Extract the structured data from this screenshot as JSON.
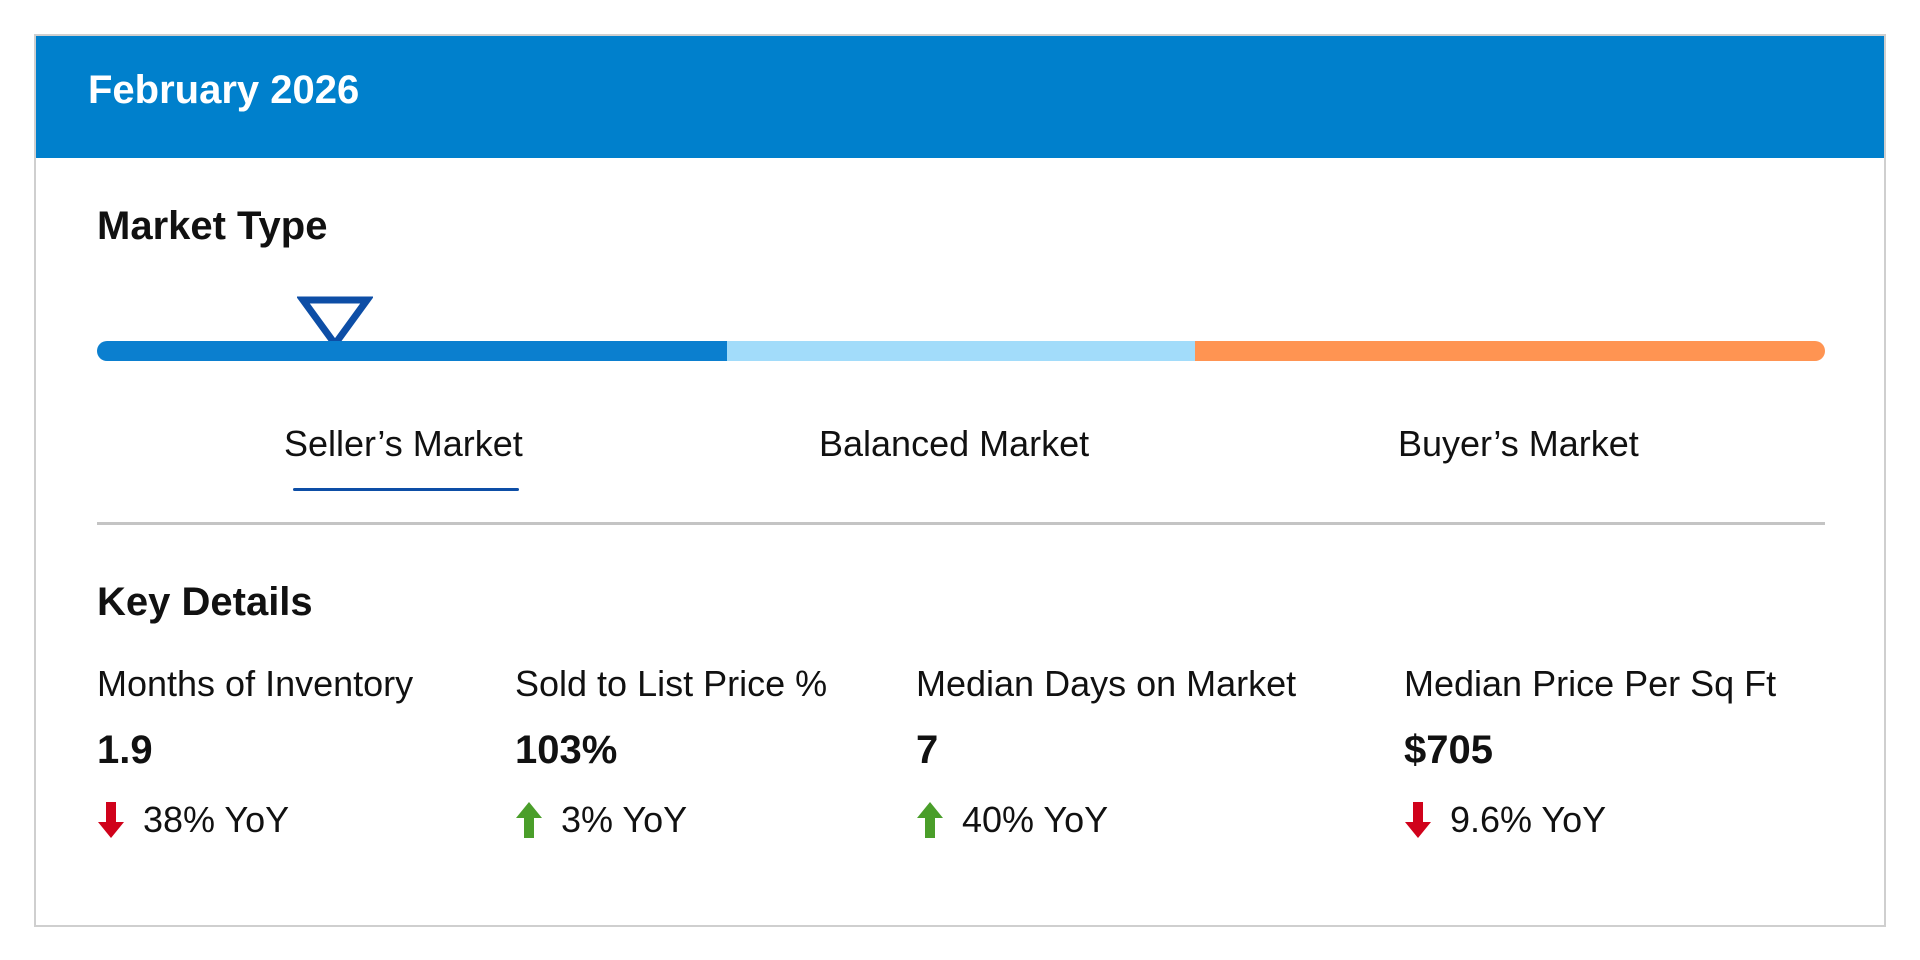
{
  "header": {
    "title": "February 2026",
    "background_color": "#0080cc"
  },
  "market_type": {
    "title": "Market Type",
    "segments": [
      {
        "label": "Seller’s Market",
        "color": "#0b7fcf",
        "active": true
      },
      {
        "label": "Balanced Market",
        "color": "#a2dcfa",
        "active": false
      },
      {
        "label": "Buyer’s Market",
        "color": "#ff9452",
        "active": false
      }
    ],
    "marker_icon": "triangle-down-outline-icon",
    "marker_color": "#0d4ea6"
  },
  "key_details": {
    "title": "Key Details",
    "metrics": [
      {
        "label": "Months of Inventory",
        "value": "1.9",
        "change": "38% YoY",
        "direction": "down",
        "icon": "arrow-down-icon",
        "color": "#d0021b"
      },
      {
        "label": "Sold to List Price %",
        "value": "103%",
        "change": "3% YoY",
        "direction": "up",
        "icon": "arrow-up-icon",
        "color": "#4a9e2a"
      },
      {
        "label": "Median Days on Market",
        "value": "7",
        "change": "40% YoY",
        "direction": "up",
        "icon": "arrow-up-icon",
        "color": "#4a9e2a"
      },
      {
        "label": "Median Price Per Sq Ft",
        "value": "$705",
        "change": "9.6% YoY",
        "direction": "down",
        "icon": "arrow-down-icon",
        "color": "#d0021b"
      }
    ]
  }
}
